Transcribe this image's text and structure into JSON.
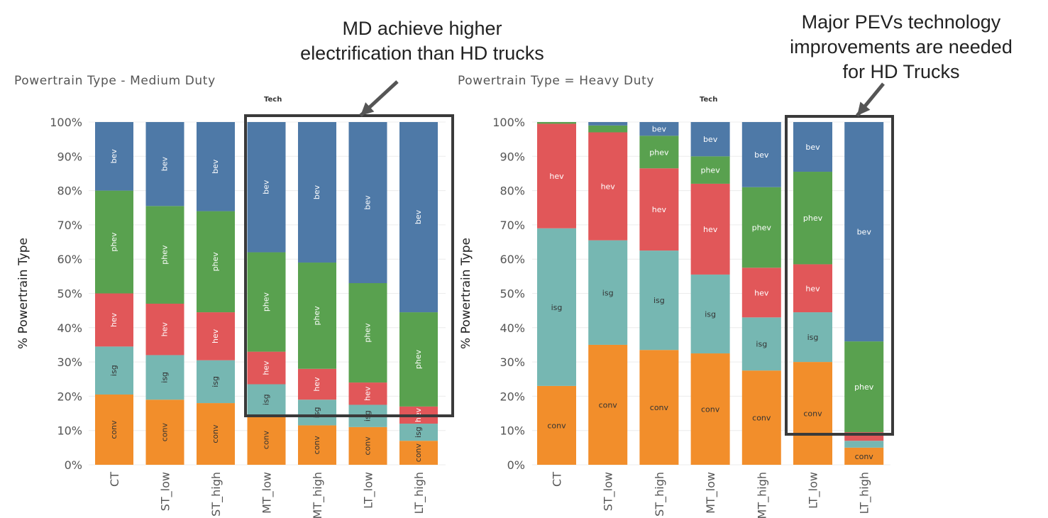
{
  "annotations": {
    "md": [
      "MD achieve higher",
      "electrification than HD trucks"
    ],
    "hd": [
      "Major PEVs technology",
      "improvements are needed",
      "for HD Trucks"
    ]
  },
  "colors": {
    "conv": "#f28e2b",
    "isg": "#76b7b2",
    "hev": "#e15759",
    "phev": "#59a14f",
    "bev": "#4e79a7",
    "grid": "#ececec",
    "tick_text": "#555555",
    "box": "#3a3a3a"
  },
  "chart_data": [
    {
      "type": "bar",
      "stacked": true,
      "title": "Powertrain Type - Medium Duty",
      "column_header": "Tech",
      "ylabel": "% Powertrain Type",
      "ylim": [
        0,
        100
      ],
      "yticks": [
        "0%",
        "10%",
        "20%",
        "30%",
        "40%",
        "50%",
        "60%",
        "70%",
        "80%",
        "90%",
        "100%"
      ],
      "categories": [
        "CT",
        "ST_low",
        "ST_high",
        "MT_low",
        "MT_high",
        "LT_low",
        "LT_high"
      ],
      "segment_label_orientation": "vertical",
      "series": [
        {
          "name": "conv",
          "values": [
            20.5,
            19,
            18,
            14.5,
            11.5,
            11,
            7
          ]
        },
        {
          "name": "isg",
          "values": [
            14,
            13,
            12.5,
            9,
            7.5,
            6.5,
            5
          ]
        },
        {
          "name": "hev",
          "values": [
            15.5,
            15,
            14,
            9.5,
            9,
            6.5,
            5
          ]
        },
        {
          "name": "phev",
          "values": [
            30,
            28.5,
            29.5,
            29,
            31,
            29,
            27.5
          ]
        },
        {
          "name": "bev",
          "values": [
            20,
            24.5,
            26,
            38,
            41,
            47,
            55.5
          ]
        }
      ],
      "highlight": {
        "from": "MT_low",
        "to": "LT_high"
      }
    },
    {
      "type": "bar",
      "stacked": true,
      "title": "Powertrain Type = Heavy Duty",
      "column_header": "Tech",
      "ylabel": "% Powertrain Type",
      "ylim": [
        0,
        100
      ],
      "yticks": [
        "0%",
        "10%",
        "20%",
        "30%",
        "40%",
        "50%",
        "60%",
        "70%",
        "80%",
        "90%",
        "100%"
      ],
      "categories": [
        "CT",
        "ST_low",
        "ST_high",
        "MT_low",
        "MT_high",
        "LT_low",
        "LT_high"
      ],
      "segment_label_orientation": "horizontal",
      "series": [
        {
          "name": "conv",
          "values": [
            23,
            35,
            33.5,
            32.5,
            27.5,
            30,
            5
          ]
        },
        {
          "name": "isg",
          "values": [
            46,
            30.5,
            29,
            23,
            15.5,
            14.5,
            2
          ]
        },
        {
          "name": "hev",
          "values": [
            30.5,
            31.5,
            24,
            26.5,
            14.5,
            14,
            2.5
          ]
        },
        {
          "name": "phev",
          "values": [
            0.5,
            2,
            9.5,
            8,
            23.5,
            27,
            26.5
          ]
        },
        {
          "name": "bev",
          "values": [
            0,
            1,
            4,
            10,
            19,
            14.5,
            64
          ]
        }
      ],
      "hidden_segment_labels": [
        [
          6,
          "isg"
        ],
        [
          6,
          "hev"
        ],
        [
          0,
          "phev"
        ],
        [
          1,
          "phev"
        ],
        [
          0,
          "bev"
        ],
        [
          1,
          "bev"
        ]
      ],
      "highlight": {
        "from": "LT_low",
        "to": "LT_high"
      }
    }
  ]
}
